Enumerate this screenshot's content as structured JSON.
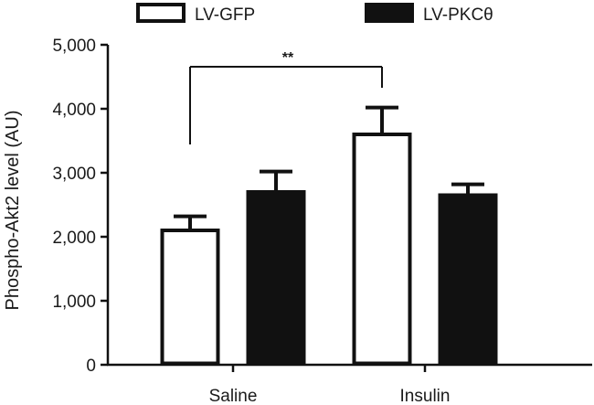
{
  "chart_data": {
    "type": "bar",
    "title": "",
    "xlabel": "",
    "ylabel": "Phospho-Akt2 level (AU)",
    "ylim": [
      0,
      5000
    ],
    "yticks": [
      "0",
      "1,000",
      "2,000",
      "3,000",
      "4,000",
      "5,000"
    ],
    "yticks_values": [
      0,
      1000,
      2000,
      3000,
      4000,
      5000
    ],
    "categories": [
      "Saline",
      "Insulin"
    ],
    "legend_position": "top",
    "series": [
      {
        "name": "LV-GFP",
        "values": [
          2100,
          3600
        ],
        "errors": [
          220,
          420
        ],
        "fill": "#ffffff"
      },
      {
        "name": "LV-PKCθ",
        "values": [
          2700,
          2650
        ],
        "errors": [
          320,
          170
        ],
        "fill": "#111111"
      }
    ],
    "significance": {
      "label": "**",
      "from": "Saline / LV-GFP",
      "to": "Insulin / LV-GFP"
    }
  }
}
